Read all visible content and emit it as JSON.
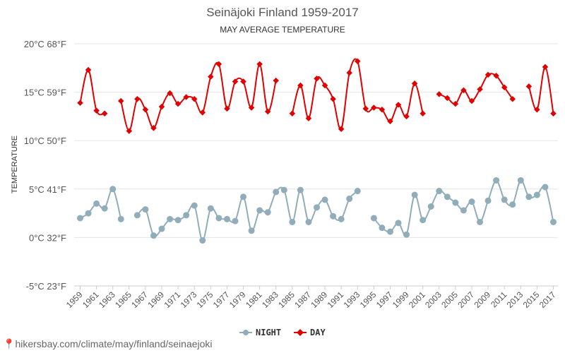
{
  "chart_data": {
    "type": "line",
    "title": "Seinäjoki Finland 1959-2017",
    "subtitle": "MAY AVERAGE TEMPERATURE",
    "ylabel": "TEMPERATURE",
    "ylim": [
      -5,
      20
    ],
    "yticks": [
      {
        "value": 20,
        "label": "20°C 68°F"
      },
      {
        "value": 15,
        "label": "15°C 59°F"
      },
      {
        "value": 10,
        "label": "10°C 50°F"
      },
      {
        "value": 5,
        "label": "5°C 41°F"
      },
      {
        "value": 0,
        "label": "0°C 32°F"
      },
      {
        "value": -5,
        "label": "-5°C 23°F"
      }
    ],
    "xticks": [
      "1959",
      "1961",
      "1963",
      "1965",
      "1967",
      "1969",
      "1971",
      "1973",
      "1975",
      "1977",
      "1979",
      "1981",
      "1983",
      "1985",
      "1987",
      "1989",
      "1991",
      "1993",
      "1995",
      "1997",
      "1999",
      "2001",
      "2003",
      "2005",
      "2007",
      "2009",
      "2011",
      "2013",
      "2015",
      "2017"
    ],
    "x": [
      1959,
      1960,
      1961,
      1962,
      1963,
      1964,
      1965,
      1966,
      1967,
      1968,
      1969,
      1970,
      1971,
      1972,
      1973,
      1974,
      1975,
      1976,
      1977,
      1978,
      1979,
      1980,
      1981,
      1982,
      1983,
      1984,
      1985,
      1986,
      1987,
      1988,
      1989,
      1990,
      1991,
      1992,
      1993,
      1994,
      1995,
      1996,
      1997,
      1998,
      1999,
      2000,
      2001,
      2002,
      2003,
      2004,
      2005,
      2006,
      2007,
      2008,
      2009,
      2010,
      2011,
      2012,
      2013,
      2014,
      2015,
      2016,
      2017
    ],
    "series": [
      {
        "name": "NIGHT",
        "color": "#90adb9",
        "values": [
          2.0,
          2.5,
          3.5,
          3.0,
          5.0,
          1.9,
          null,
          2.3,
          2.9,
          0.2,
          0.9,
          1.9,
          1.8,
          2.3,
          3.3,
          -0.3,
          3.0,
          2.0,
          1.9,
          1.7,
          4.2,
          0.7,
          2.8,
          2.6,
          4.7,
          4.9,
          1.6,
          4.9,
          1.6,
          3.1,
          3.9,
          2.2,
          1.9,
          4.0,
          4.8,
          null,
          2.0,
          1.0,
          0.6,
          1.5,
          0.3,
          4.4,
          1.8,
          3.2,
          4.8,
          4.2,
          3.6,
          2.8,
          3.7,
          1.6,
          3.8,
          5.9,
          3.9,
          3.4,
          5.9,
          4.2,
          4.4,
          5.2,
          1.6
        ]
      },
      {
        "name": "DAY",
        "color": "#e00000",
        "values": [
          13.9,
          17.3,
          13.1,
          12.8,
          null,
          14.1,
          11.0,
          14.3,
          13.2,
          11.3,
          13.5,
          14.9,
          13.8,
          14.5,
          14.3,
          12.9,
          16.6,
          17.9,
          13.3,
          16.1,
          16.1,
          13.4,
          17.9,
          13.0,
          16.2,
          null,
          12.8,
          15.7,
          12.3,
          16.4,
          15.7,
          14.3,
          11.2,
          17.0,
          18.2,
          13.3,
          13.4,
          13.2,
          12.0,
          13.7,
          12.5,
          15.9,
          12.8,
          null,
          14.8,
          14.4,
          13.8,
          15.2,
          14.1,
          15.3,
          16.8,
          16.7,
          15.5,
          14.3,
          null,
          15.6,
          13.2,
          17.6,
          12.8
        ]
      }
    ],
    "legend": [
      "NIGHT",
      "DAY"
    ],
    "legend_position": "bottom-center"
  },
  "footer": {
    "url": "hikersbay.com/climate/may/finland/seinaejoki"
  }
}
